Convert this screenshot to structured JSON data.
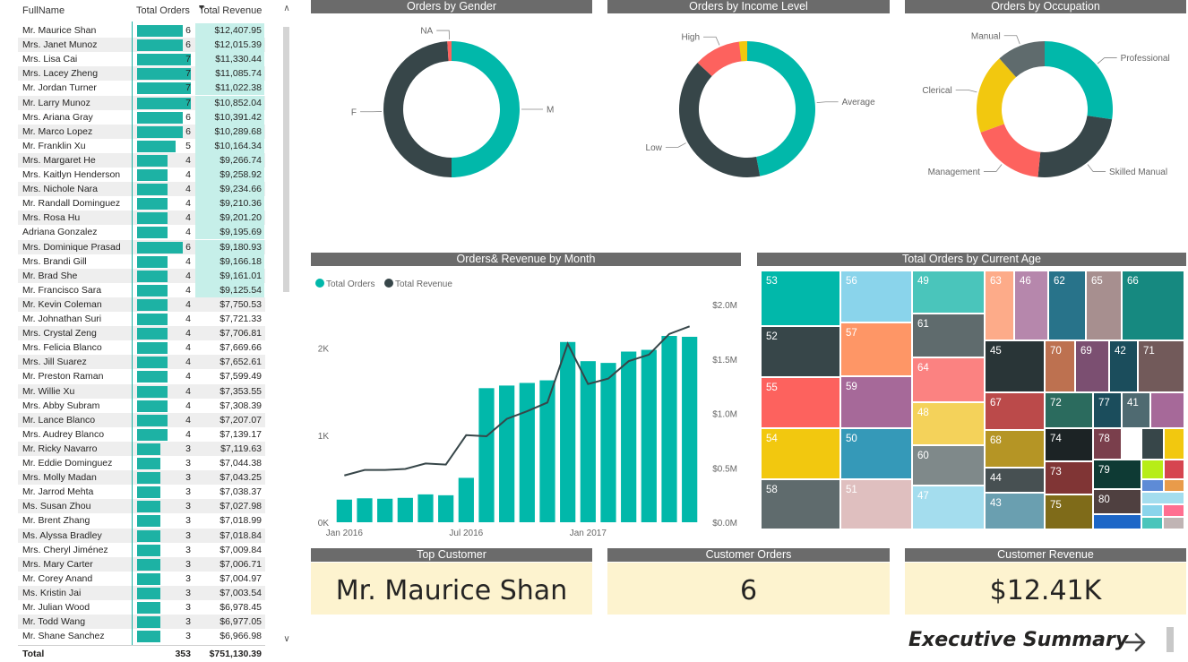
{
  "table": {
    "headers": [
      "FullName",
      "Total Orders",
      "Total Revenue"
    ],
    "rows": [
      {
        "name": "Mr. Maurice Shan",
        "orders": 6,
        "revenue": "$12,407.95"
      },
      {
        "name": "Mrs. Janet Munoz",
        "orders": 6,
        "revenue": "$12,015.39"
      },
      {
        "name": "Mrs. Lisa Cai",
        "orders": 7,
        "revenue": "$11,330.44"
      },
      {
        "name": "Mrs. Lacey Zheng",
        "orders": 7,
        "revenue": "$11,085.74"
      },
      {
        "name": "Mr. Jordan Turner",
        "orders": 7,
        "revenue": "$11,022.38"
      },
      {
        "name": "Mr. Larry Munoz",
        "orders": 7,
        "revenue": "$10,852.04"
      },
      {
        "name": "Mrs. Ariana Gray",
        "orders": 6,
        "revenue": "$10,391.42"
      },
      {
        "name": "Mr. Marco Lopez",
        "orders": 6,
        "revenue": "$10,289.68"
      },
      {
        "name": "Mr. Franklin Xu",
        "orders": 5,
        "revenue": "$10,164.34"
      },
      {
        "name": "Mrs. Margaret He",
        "orders": 4,
        "revenue": "$9,266.74"
      },
      {
        "name": "Mrs. Kaitlyn Henderson",
        "orders": 4,
        "revenue": "$9,258.92"
      },
      {
        "name": "Mrs. Nichole Nara",
        "orders": 4,
        "revenue": "$9,234.66"
      },
      {
        "name": "Mr. Randall Dominguez",
        "orders": 4,
        "revenue": "$9,210.36"
      },
      {
        "name": "Mrs. Rosa Hu",
        "orders": 4,
        "revenue": "$9,201.20"
      },
      {
        "name": "Adriana Gonzalez",
        "orders": 4,
        "revenue": "$9,195.69"
      },
      {
        "name": "Mrs. Dominique Prasad",
        "orders": 6,
        "revenue": "$9,180.93"
      },
      {
        "name": "Mrs. Brandi Gill",
        "orders": 4,
        "revenue": "$9,166.18"
      },
      {
        "name": "Mr. Brad She",
        "orders": 4,
        "revenue": "$9,161.01"
      },
      {
        "name": "Mr. Francisco Sara",
        "orders": 4,
        "revenue": "$9,125.54"
      },
      {
        "name": "Mr. Kevin Coleman",
        "orders": 4,
        "revenue": "$7,750.53"
      },
      {
        "name": "Mr. Johnathan Suri",
        "orders": 4,
        "revenue": "$7,721.33"
      },
      {
        "name": "Mrs. Crystal Zeng",
        "orders": 4,
        "revenue": "$7,706.81"
      },
      {
        "name": "Mrs. Felicia Blanco",
        "orders": 4,
        "revenue": "$7,669.66"
      },
      {
        "name": "Mrs. Jill Suarez",
        "orders": 4,
        "revenue": "$7,652.61"
      },
      {
        "name": "Mr. Preston Raman",
        "orders": 4,
        "revenue": "$7,599.49"
      },
      {
        "name": "Mr. Willie Xu",
        "orders": 4,
        "revenue": "$7,353.55"
      },
      {
        "name": "Mrs. Abby Subram",
        "orders": 4,
        "revenue": "$7,308.39"
      },
      {
        "name": "Mr. Lance Blanco",
        "orders": 4,
        "revenue": "$7,207.07"
      },
      {
        "name": "Mrs. Audrey Blanco",
        "orders": 4,
        "revenue": "$7,139.17"
      },
      {
        "name": "Mr. Ricky Navarro",
        "orders": 3,
        "revenue": "$7,119.63"
      },
      {
        "name": "Mr. Eddie Dominguez",
        "orders": 3,
        "revenue": "$7,044.38"
      },
      {
        "name": "Mrs. Molly Madan",
        "orders": 3,
        "revenue": "$7,043.25"
      },
      {
        "name": "Mr. Jarrod Mehta",
        "orders": 3,
        "revenue": "$7,038.37"
      },
      {
        "name": "Ms. Susan Zhou",
        "orders": 3,
        "revenue": "$7,027.98"
      },
      {
        "name": "Mr. Brent Zhang",
        "orders": 3,
        "revenue": "$7,018.99"
      },
      {
        "name": "Ms. Alyssa Bradley",
        "orders": 3,
        "revenue": "$7,018.84"
      },
      {
        "name": "Mrs. Cheryl Jiménez",
        "orders": 3,
        "revenue": "$7,009.84"
      },
      {
        "name": "Mrs. Mary Carter",
        "orders": 3,
        "revenue": "$7,006.71"
      },
      {
        "name": "Mr. Corey Anand",
        "orders": 3,
        "revenue": "$7,004.97"
      },
      {
        "name": "Ms. Kristin Jai",
        "orders": 3,
        "revenue": "$7,003.54"
      },
      {
        "name": "Mr. Julian Wood",
        "orders": 3,
        "revenue": "$6,978.45"
      },
      {
        "name": "Mr. Todd Wang",
        "orders": 3,
        "revenue": "$6,977.05"
      },
      {
        "name": "Mr. Shane Sanchez",
        "orders": 3,
        "revenue": "$6,966.98"
      }
    ],
    "total_label": "Total",
    "total_orders": "353",
    "total_revenue": "$751,130.39",
    "bar_color": "#1db2a4",
    "revenue_highlight": "#c6efe9"
  },
  "charts": {
    "gender_title": "Orders by Gender",
    "income_title": "Orders by Income Level",
    "occupation_title": "Orders by Occupation",
    "month_title": "Orders& Revenue by Month",
    "age_title": "Total Orders by Current Age"
  },
  "chart_data": [
    {
      "type": "pie",
      "title": "Orders by Gender",
      "labels": [
        "M",
        "F",
        "NA"
      ],
      "values": [
        50,
        49,
        1
      ],
      "colors": [
        "#01b8aa",
        "#374649",
        "#fd625e"
      ]
    },
    {
      "type": "pie",
      "title": "Orders by Income Level",
      "labels": [
        "Average",
        "Low",
        "High"
      ],
      "values": [
        47,
        40,
        13
      ],
      "colors": [
        "#01b8aa",
        "#374649",
        "#fd625e"
      ],
      "extra_slice_color": "#f2c80f"
    },
    {
      "type": "pie",
      "title": "Orders by Occupation",
      "labels": [
        "Professional",
        "Skilled Manual",
        "Management",
        "Clerical",
        "Manual"
      ],
      "values": [
        26,
        23,
        17,
        18,
        11
      ],
      "colors": [
        "#01b8aa",
        "#374649",
        "#fd625e",
        "#f2c80f",
        "#5f6b6d"
      ]
    },
    {
      "type": "bar",
      "title": "Orders& Revenue by Month",
      "legend": [
        "Total Orders",
        "Total Revenue"
      ],
      "x_ticks": [
        "Jan 2016",
        "Jul 2016",
        "Jan 2017"
      ],
      "y_ticks_left": [
        "0K",
        "1K",
        "2K"
      ],
      "y_ticks_right": [
        "$0.0M",
        "$0.5M",
        "$1.0M",
        "$1.5M",
        "$2.0M"
      ],
      "ylim_orders": [
        0,
        2500
      ],
      "ylim_revenue": [
        0,
        2000000
      ],
      "series": [
        {
          "name": "Total Orders",
          "values": [
            260,
            275,
            270,
            280,
            320,
            310,
            510,
            1540,
            1570,
            1600,
            1630,
            2070,
            1850,
            1830,
            1960,
            1980,
            2140,
            2130
          ]
        },
        {
          "name": "Total Revenue",
          "values": [
            430000,
            480000,
            480000,
            490000,
            540000,
            530000,
            800000,
            790000,
            950000,
            1020000,
            1100000,
            1640000,
            1270000,
            1320000,
            1480000,
            1540000,
            1730000,
            1800000
          ]
        }
      ],
      "colors": [
        "#01b8aa",
        "#374649"
      ]
    },
    {
      "type": "treemap",
      "title": "Total Orders by Current Age",
      "labels": [
        "53",
        "52",
        "55",
        "54",
        "58",
        "56",
        "57",
        "59",
        "50",
        "51",
        "49",
        "61",
        "64",
        "48",
        "60",
        "47",
        "63",
        "46",
        "62",
        "65",
        "66",
        "45",
        "70",
        "69",
        "42",
        "71",
        "67",
        "72",
        "77",
        "41",
        "68",
        "74",
        "78",
        "44",
        "73",
        "79",
        "43",
        "75",
        "80"
      ]
    }
  ],
  "cards": {
    "top_customer_title": "Top Customer",
    "top_customer_value": "Mr. Maurice Shan",
    "customer_orders_title": "Customer Orders",
    "customer_orders_value": "6",
    "customer_revenue_title": "Customer Revenue",
    "customer_revenue_value": "$12.41K"
  },
  "nav": {
    "executive_summary": "Executive Summary"
  }
}
